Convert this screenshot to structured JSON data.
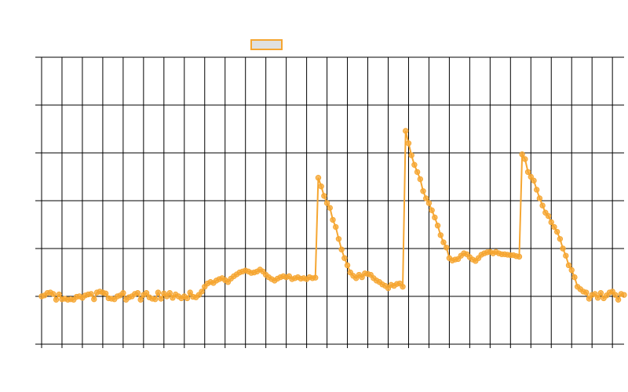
{
  "chart_data": {
    "type": "line",
    "grid": true,
    "ylim": [
      0,
      6
    ],
    "yticks": [
      0,
      1,
      2,
      3,
      4,
      5,
      6
    ],
    "xlim": [
      0,
      200
    ],
    "xticks": [
      0,
      7,
      14,
      21,
      28,
      35,
      42,
      49,
      56,
      63,
      70,
      77,
      84,
      91,
      98,
      105,
      112,
      119,
      126,
      133,
      140,
      147,
      154,
      161,
      168,
      175,
      182,
      189,
      196
    ],
    "series": [
      {
        "color": "#f5a632",
        "values": [
          1.0,
          1.02,
          1.07,
          1.08,
          1.05,
          0.93,
          1.04,
          0.94,
          0.95,
          0.93,
          0.94,
          0.93,
          0.99,
          1.0,
          0.97,
          1.02,
          1.04,
          1.05,
          0.94,
          1.08,
          1.1,
          1.08,
          1.06,
          0.96,
          0.95,
          0.94,
          1.0,
          1.02,
          1.07,
          0.93,
          0.98,
          1.0,
          1.05,
          1.07,
          0.93,
          1.03,
          1.07,
          0.98,
          0.95,
          0.94,
          1.08,
          0.95,
          1.06,
          1.0,
          1.07,
          0.97,
          1.04,
          1.0,
          0.96,
          1.0,
          0.96,
          1.08,
          0.99,
          0.98,
          1.03,
          1.1,
          1.2,
          1.27,
          1.3,
          1.28,
          1.33,
          1.36,
          1.38,
          1.34,
          1.3,
          1.37,
          1.42,
          1.46,
          1.5,
          1.52,
          1.54,
          1.52,
          1.49,
          1.5,
          1.52,
          1.56,
          1.52,
          1.45,
          1.4,
          1.36,
          1.33,
          1.37,
          1.4,
          1.42,
          1.4,
          1.42,
          1.36,
          1.38,
          1.4,
          1.37,
          1.38,
          1.36,
          1.4,
          1.38,
          1.39,
          3.48,
          3.3,
          3.1,
          2.95,
          2.85,
          2.6,
          2.45,
          2.2,
          1.98,
          1.8,
          1.65,
          1.5,
          1.43,
          1.38,
          1.45,
          1.4,
          1.48,
          1.47,
          1.45,
          1.38,
          1.33,
          1.3,
          1.25,
          1.22,
          1.17,
          1.24,
          1.22,
          1.26,
          1.27,
          1.2,
          4.46,
          4.2,
          3.95,
          3.75,
          3.6,
          3.45,
          3.2,
          3.05,
          2.95,
          2.8,
          2.65,
          2.48,
          2.28,
          2.13,
          2.02,
          1.8,
          1.75,
          1.77,
          1.78,
          1.85,
          1.9,
          1.88,
          1.82,
          1.77,
          1.74,
          1.8,
          1.87,
          1.9,
          1.92,
          1.93,
          1.9,
          1.93,
          1.9,
          1.88,
          1.88,
          1.87,
          1.86,
          1.86,
          1.84,
          1.83,
          3.97,
          3.87,
          3.6,
          3.5,
          3.42,
          3.23,
          3.05,
          2.9,
          2.75,
          2.68,
          2.55,
          2.45,
          2.35,
          2.2,
          2.0,
          1.85,
          1.65,
          1.55,
          1.4,
          1.2,
          1.15,
          1.1,
          1.08,
          0.95,
          1.03,
          1.05,
          0.97,
          1.07,
          0.96,
          1.02,
          1.08,
          1.1,
          1.03,
          0.93,
          1.05,
          1.03
        ]
      }
    ]
  }
}
